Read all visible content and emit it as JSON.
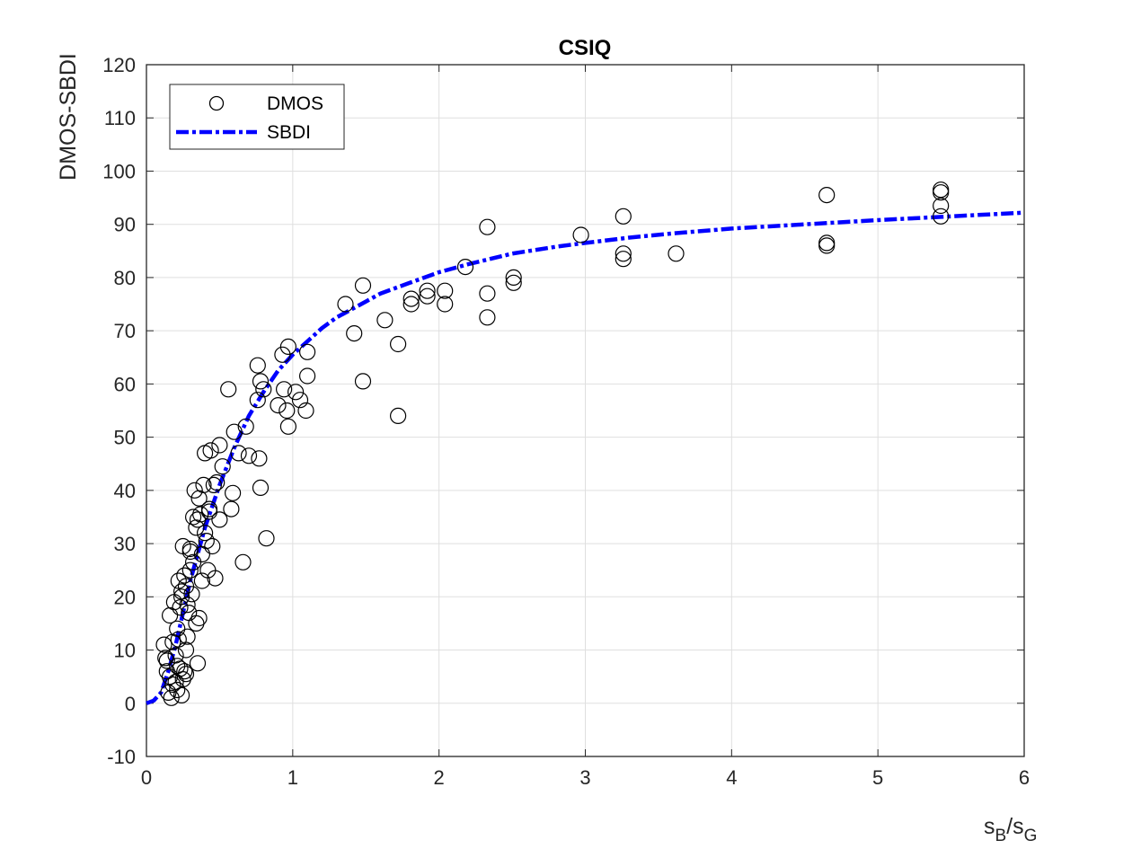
{
  "chart_data": {
    "type": "scatter",
    "title": "CSIQ",
    "xlabel": {
      "base": "s",
      "sub1": "B",
      "sep": "/s",
      "sub2": "G"
    },
    "ylabel": "DMOS-SBDI",
    "xlim": [
      0,
      6
    ],
    "ylim": [
      -10,
      120
    ],
    "xticks": [
      "0",
      "1",
      "2",
      "3",
      "4",
      "5",
      "6"
    ],
    "yticks": [
      "-10",
      "0",
      "10",
      "20",
      "30",
      "40",
      "50",
      "60",
      "70",
      "80",
      "90",
      "100",
      "110",
      "120"
    ],
    "grid": true,
    "legend_position": "top-left",
    "series": [
      {
        "name": "DMOS",
        "kind": "scatter",
        "marker": "open-circle",
        "color": "#000000",
        "points": [
          [
            0.12,
            11
          ],
          [
            0.13,
            8.5
          ],
          [
            0.14,
            6
          ],
          [
            0.15,
            2
          ],
          [
            0.16,
            16.5
          ],
          [
            0.17,
            1
          ],
          [
            0.18,
            11.5
          ],
          [
            0.19,
            19
          ],
          [
            0.2,
            4
          ],
          [
            0.21,
            7
          ],
          [
            0.22,
            12
          ],
          [
            0.22,
            23
          ],
          [
            0.23,
            18
          ],
          [
            0.24,
            1.5
          ],
          [
            0.25,
            29.5
          ],
          [
            0.26,
            24
          ],
          [
            0.27,
            5.5
          ],
          [
            0.28,
            12.5
          ],
          [
            0.29,
            17
          ],
          [
            0.3,
            29
          ],
          [
            0.31,
            20.5
          ],
          [
            0.32,
            35
          ],
          [
            0.33,
            40
          ],
          [
            0.34,
            15
          ],
          [
            0.35,
            7.5
          ],
          [
            0.36,
            38.5
          ],
          [
            0.37,
            35.5
          ],
          [
            0.38,
            23
          ],
          [
            0.39,
            41
          ],
          [
            0.4,
            47
          ],
          [
            0.41,
            30.5
          ],
          [
            0.42,
            25
          ],
          [
            0.43,
            36
          ],
          [
            0.44,
            47.5
          ],
          [
            0.45,
            29.5
          ],
          [
            0.47,
            23.5
          ],
          [
            0.48,
            41.5
          ],
          [
            0.5,
            48.5
          ],
          [
            0.5,
            34.5
          ],
          [
            0.52,
            44.5
          ],
          [
            0.56,
            59
          ],
          [
            0.58,
            36.5
          ],
          [
            0.59,
            39.5
          ],
          [
            0.6,
            51
          ],
          [
            0.63,
            47
          ],
          [
            0.66,
            26.5
          ],
          [
            0.68,
            52
          ],
          [
            0.7,
            46.5
          ],
          [
            0.76,
            63.5
          ],
          [
            0.76,
            57
          ],
          [
            0.77,
            46
          ],
          [
            0.78,
            40.5
          ],
          [
            0.78,
            60.5
          ],
          [
            0.8,
            59
          ],
          [
            0.82,
            31
          ],
          [
            0.9,
            56
          ],
          [
            0.93,
            65.5
          ],
          [
            0.94,
            59
          ],
          [
            0.96,
            55
          ],
          [
            0.97,
            67
          ],
          [
            0.97,
            52
          ],
          [
            1.02,
            58.5
          ],
          [
            1.05,
            57
          ],
          [
            1.09,
            55
          ],
          [
            1.1,
            66
          ],
          [
            1.1,
            61.5
          ],
          [
            1.36,
            75
          ],
          [
            1.42,
            69.5
          ],
          [
            1.48,
            78.5
          ],
          [
            1.48,
            60.5
          ],
          [
            1.63,
            72
          ],
          [
            1.72,
            67.5
          ],
          [
            1.72,
            54
          ],
          [
            1.81,
            76
          ],
          [
            1.81,
            75
          ],
          [
            1.92,
            77.5
          ],
          [
            1.92,
            76.5
          ],
          [
            2.04,
            77.5
          ],
          [
            2.04,
            75
          ],
          [
            2.18,
            82
          ],
          [
            2.33,
            89.5
          ],
          [
            2.33,
            77
          ],
          [
            2.33,
            72.5
          ],
          [
            2.51,
            80
          ],
          [
            2.51,
            79
          ],
          [
            2.97,
            88
          ],
          [
            3.26,
            91.5
          ],
          [
            3.26,
            84.5
          ],
          [
            3.26,
            83.5
          ],
          [
            3.62,
            84.5
          ],
          [
            4.65,
            95.5
          ],
          [
            4.65,
            86.5
          ],
          [
            4.65,
            86
          ],
          [
            5.43,
            96.5
          ],
          [
            5.43,
            96
          ],
          [
            5.43,
            93.5
          ],
          [
            5.43,
            91.5
          ],
          [
            0.14,
            8
          ],
          [
            0.16,
            5
          ],
          [
            0.18,
            3.5
          ],
          [
            0.2,
            9
          ],
          [
            0.21,
            2.5
          ],
          [
            0.23,
            6.5
          ],
          [
            0.25,
            4.5
          ],
          [
            0.27,
            10
          ],
          [
            0.21,
            14
          ],
          [
            0.24,
            20
          ],
          [
            0.27,
            22
          ],
          [
            0.3,
            25
          ],
          [
            0.32,
            26.5
          ],
          [
            0.34,
            33
          ],
          [
            0.36,
            16
          ],
          [
            0.38,
            28
          ],
          [
            0.4,
            32
          ],
          [
            0.43,
            36.5
          ],
          [
            0.46,
            41
          ],
          [
            0.26,
            6
          ],
          [
            0.3,
            28.5
          ],
          [
            0.35,
            34.5
          ],
          [
            0.28,
            18.5
          ],
          [
            0.24,
            21
          ]
        ]
      },
      {
        "name": "SBDI",
        "kind": "line",
        "style": "dash-dot",
        "color": "#0000ff",
        "x": [
          0,
          0.05,
          0.1,
          0.15,
          0.2,
          0.25,
          0.3,
          0.35,
          0.4,
          0.5,
          0.6,
          0.7,
          0.8,
          0.9,
          1.0,
          1.1,
          1.2,
          1.3,
          1.4,
          1.5,
          1.6,
          1.8,
          2.0,
          2.2,
          2.5,
          2.8,
          3.0,
          3.3,
          3.6,
          4.0,
          4.5,
          5.0,
          5.5,
          6.0
        ],
        "y": [
          0,
          0.5,
          2,
          6,
          11,
          17,
          23,
          28,
          33,
          41,
          48,
          54,
          58.5,
          62.5,
          65.5,
          68,
          70.5,
          72.5,
          74,
          75.5,
          77,
          79,
          81,
          82.5,
          84.5,
          85.8,
          86.5,
          87.5,
          88.3,
          89.2,
          90,
          90.8,
          91.5,
          92.2
        ]
      }
    ]
  }
}
